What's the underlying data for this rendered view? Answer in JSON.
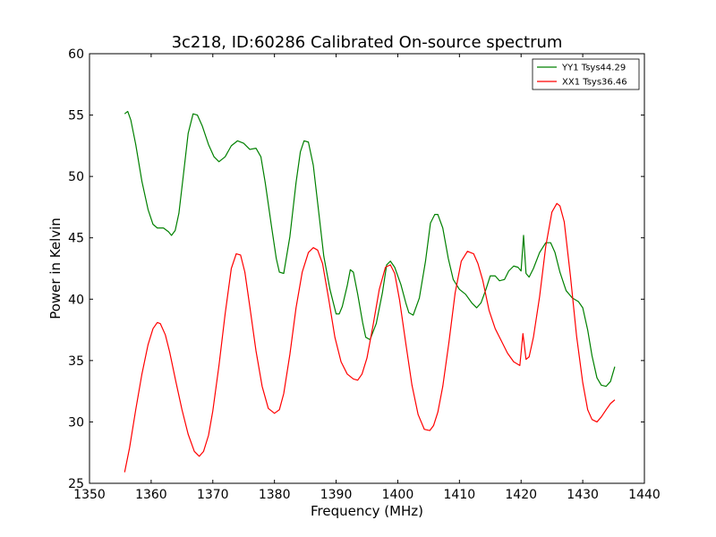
{
  "chart_data": {
    "type": "line",
    "title": "3c218, ID:60286 Calibrated On-source spectrum",
    "xlabel": "Frequency (MHz)",
    "ylabel": "Power in Kelvin",
    "xlim": [
      1350,
      1440
    ],
    "ylim": [
      25,
      60
    ],
    "xticks": [
      1350,
      1360,
      1370,
      1380,
      1390,
      1400,
      1410,
      1420,
      1430,
      1440
    ],
    "yticks": [
      25,
      30,
      35,
      40,
      45,
      50,
      55,
      60
    ],
    "grid": false,
    "legend": "top-right",
    "series": [
      {
        "name": "YY1 Tsys44.29",
        "color": "#008000",
        "x": [
          1355.7,
          1356.2,
          1356.7,
          1357.5,
          1358.5,
          1359.5,
          1360.3,
          1361.0,
          1362.0,
          1362.8,
          1363.3,
          1363.9,
          1364.5,
          1365.2,
          1366.0,
          1366.8,
          1367.5,
          1368.3,
          1369.3,
          1370.2,
          1371.0,
          1372.0,
          1373.0,
          1374.0,
          1375.0,
          1376.0,
          1377.0,
          1377.8,
          1378.5,
          1379.5,
          1380.3,
          1380.8,
          1381.5,
          1382.5,
          1383.5,
          1384.2,
          1384.8,
          1385.5,
          1386.3,
          1387.2,
          1388.0,
          1389.0,
          1390.0,
          1390.5,
          1391.0,
          1391.8,
          1392.3,
          1392.8,
          1393.5,
          1394.3,
          1394.8,
          1395.5,
          1396.5,
          1397.5,
          1398.2,
          1398.8,
          1399.5,
          1400.5,
          1401.3,
          1401.8,
          1402.5,
          1403.5,
          1404.5,
          1405.3,
          1406.0,
          1406.5,
          1407.3,
          1408.2,
          1409.0,
          1410.0,
          1411.0,
          1412.0,
          1412.8,
          1413.5,
          1414.3,
          1415.0,
          1415.8,
          1416.5,
          1417.3,
          1418.0,
          1418.8,
          1419.5,
          1420.0,
          1420.4,
          1420.8,
          1421.3,
          1422.0,
          1423.0,
          1424.0,
          1424.8,
          1425.5,
          1426.3,
          1427.3,
          1428.3,
          1429.3,
          1430.0,
          1430.8,
          1431.5,
          1432.3,
          1433.0,
          1433.8,
          1434.5,
          1435.2
        ],
        "values": [
          55.1,
          55.3,
          54.6,
          52.6,
          49.6,
          47.3,
          46.1,
          45.8,
          45.8,
          45.5,
          45.2,
          45.6,
          47.0,
          50.0,
          53.5,
          55.1,
          55.0,
          54.1,
          52.6,
          51.6,
          51.2,
          51.6,
          52.5,
          52.9,
          52.7,
          52.2,
          52.3,
          51.6,
          49.5,
          46.0,
          43.3,
          42.2,
          42.1,
          45.1,
          49.5,
          52.0,
          52.9,
          52.8,
          50.9,
          47.0,
          43.5,
          40.8,
          38.8,
          38.8,
          39.4,
          41.1,
          42.4,
          42.2,
          40.4,
          38.1,
          36.9,
          36.7,
          38.0,
          40.5,
          42.8,
          43.1,
          42.6,
          41.2,
          39.7,
          38.9,
          38.7,
          40.1,
          43.1,
          46.2,
          46.9,
          46.9,
          45.8,
          43.3,
          41.6,
          40.8,
          40.4,
          39.7,
          39.3,
          39.7,
          40.8,
          41.9,
          41.9,
          41.5,
          41.6,
          42.3,
          42.7,
          42.6,
          42.3,
          45.2,
          42.1,
          41.8,
          42.5,
          43.8,
          44.6,
          44.6,
          43.8,
          42.2,
          40.7,
          40.1,
          39.8,
          39.3,
          37.5,
          35.4,
          33.6,
          33.0,
          32.9,
          33.3,
          34.5
        ]
      },
      {
        "name": "XX1 Tsys36.46",
        "color": "#ff0000",
        "x": [
          1355.7,
          1356.5,
          1357.5,
          1358.5,
          1359.5,
          1360.3,
          1361.0,
          1361.5,
          1362.3,
          1363.0,
          1364.0,
          1365.0,
          1366.0,
          1367.0,
          1367.8,
          1368.5,
          1369.3,
          1370.0,
          1371.0,
          1372.0,
          1373.0,
          1373.8,
          1374.5,
          1375.2,
          1376.0,
          1377.0,
          1378.0,
          1379.0,
          1380.0,
          1380.8,
          1381.5,
          1382.5,
          1383.5,
          1384.5,
          1385.5,
          1386.3,
          1387.0,
          1387.8,
          1388.8,
          1389.8,
          1390.8,
          1391.8,
          1392.8,
          1393.5,
          1394.2,
          1395.0,
          1396.0,
          1397.0,
          1398.0,
          1398.8,
          1399.5,
          1400.3,
          1401.3,
          1402.3,
          1403.3,
          1404.3,
          1405.2,
          1405.8,
          1406.5,
          1407.3,
          1408.3,
          1409.3,
          1410.3,
          1411.3,
          1412.3,
          1413.0,
          1413.8,
          1414.8,
          1415.8,
          1416.8,
          1417.8,
          1418.8,
          1419.8,
          1420.3,
          1420.8,
          1421.3,
          1422.0,
          1423.0,
          1424.0,
          1425.0,
          1425.8,
          1426.3,
          1427.0,
          1428.0,
          1429.0,
          1430.0,
          1430.8,
          1431.5,
          1432.3,
          1433.0,
          1433.8,
          1434.5,
          1435.2
        ],
        "values": [
          25.9,
          27.9,
          31.0,
          33.9,
          36.3,
          37.6,
          38.1,
          38.0,
          37.1,
          35.7,
          33.3,
          31.0,
          29.0,
          27.6,
          27.2,
          27.6,
          28.9,
          30.9,
          34.6,
          38.8,
          42.5,
          43.7,
          43.6,
          42.2,
          39.4,
          35.8,
          32.9,
          31.1,
          30.7,
          31.0,
          32.3,
          35.5,
          39.3,
          42.2,
          43.8,
          44.2,
          44.0,
          42.9,
          40.0,
          36.9,
          34.9,
          33.9,
          33.5,
          33.4,
          33.9,
          35.2,
          37.9,
          40.8,
          42.6,
          42.8,
          42.1,
          39.9,
          36.4,
          33.0,
          30.6,
          29.4,
          29.3,
          29.7,
          30.8,
          32.9,
          36.5,
          40.5,
          43.1,
          43.9,
          43.7,
          42.9,
          41.5,
          39.1,
          37.6,
          36.6,
          35.6,
          34.9,
          34.6,
          37.2,
          35.1,
          35.3,
          36.9,
          40.2,
          44.3,
          47.1,
          47.8,
          47.6,
          46.3,
          41.9,
          37.0,
          33.2,
          31.0,
          30.2,
          30.0,
          30.4,
          31.0,
          31.5,
          31.8
        ]
      }
    ]
  }
}
